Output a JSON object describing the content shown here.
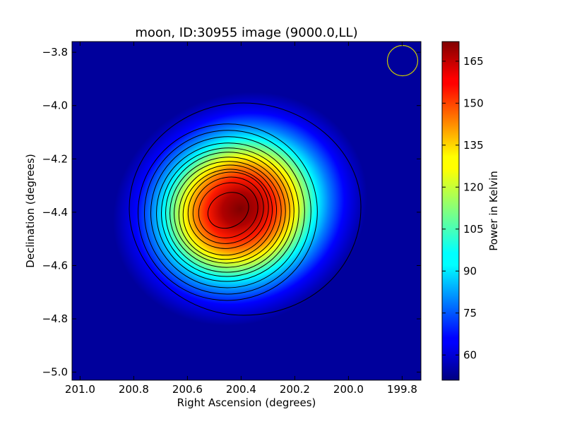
{
  "chart_data": {
    "type": "heatmap",
    "title": "moon, ID:30955 image (9000.0,LL)",
    "xlabel": "Right Ascension (degrees)",
    "ylabel": "Declination (degrees)",
    "colorbar_label": "Power in Kelvin",
    "colormap": "jet",
    "x_ticks": [
      "201.0",
      "200.8",
      "200.6",
      "200.4",
      "200.2",
      "200.0",
      "199.8"
    ],
    "x_tick_values": [
      201.0,
      200.8,
      200.6,
      200.4,
      200.2,
      200.0,
      199.8
    ],
    "y_ticks": [
      "−3.8",
      "−4.0",
      "−4.2",
      "−4.4",
      "−4.6",
      "−4.8",
      "−5.0"
    ],
    "y_tick_values": [
      -3.8,
      -4.0,
      -4.2,
      -4.4,
      -4.6,
      -4.8,
      -5.0
    ],
    "xlim": [
      201.03,
      199.73
    ],
    "ylim": [
      -5.03,
      -3.76
    ],
    "colorbar_ticks": [
      "60",
      "75",
      "90",
      "105",
      "120",
      "135",
      "150",
      "165"
    ],
    "colorbar_tick_values": [
      60,
      75,
      90,
      105,
      120,
      135,
      150,
      165
    ],
    "colorbar_range": [
      51,
      172
    ],
    "source": {
      "peak_ra": 200.45,
      "peak_dec": -4.4,
      "peak_value": 172,
      "background_value": 52
    },
    "beam_marker": {
      "ra": 199.79,
      "dec": -3.84,
      "color": "#cccc00"
    },
    "contours": "black"
  }
}
